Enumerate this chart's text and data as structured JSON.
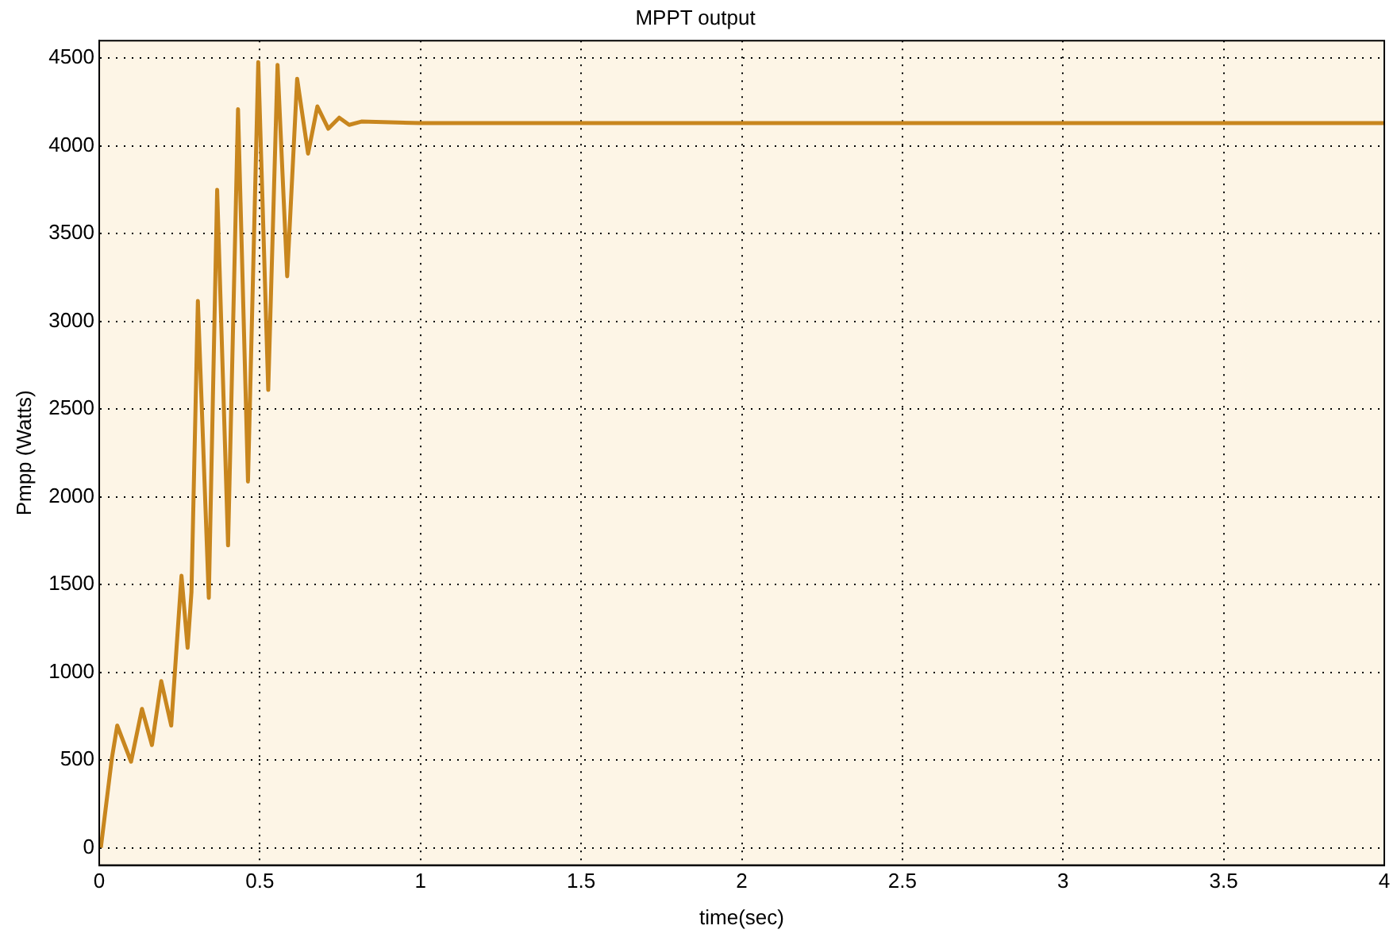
{
  "chart_data": {
    "type": "line",
    "title": "MPPT output",
    "xlabel": "time(sec)",
    "ylabel": "Pmpp (Watts)",
    "xlim": [
      0,
      4
    ],
    "xticks": [
      0,
      0.5,
      1,
      1.5,
      2,
      2.5,
      3,
      3.5,
      4
    ],
    "ylim": [
      -100,
      4600
    ],
    "yticks": [
      0,
      500,
      1000,
      1500,
      2000,
      2500,
      3000,
      3500,
      4000,
      4500
    ],
    "grid": true,
    "marker": "none",
    "line_style": "solid",
    "series": [
      {
        "color": "#c8861e",
        "x": [
          0.005,
          0.039,
          0.056,
          0.099,
          0.133,
          0.164,
          0.193,
          0.224,
          0.256,
          0.275,
          0.287,
          0.307,
          0.341,
          0.367,
          0.401,
          0.432,
          0.463,
          0.495,
          0.526,
          0.555,
          0.585,
          0.616,
          0.65,
          0.679,
          0.713,
          0.747,
          0.778,
          0.816,
          1,
          2,
          3,
          4
        ],
        "values": [
          0,
          506,
          696,
          490,
          791,
          585,
          949,
          696,
          1550,
          1139,
          1456,
          3116,
          1424,
          3750,
          1723,
          4209,
          2087,
          4478,
          2609,
          4462,
          3257,
          4383,
          3956,
          4225,
          4098,
          4161,
          4120,
          4139,
          4130,
          4130,
          4130,
          4130
        ]
      }
    ]
  }
}
